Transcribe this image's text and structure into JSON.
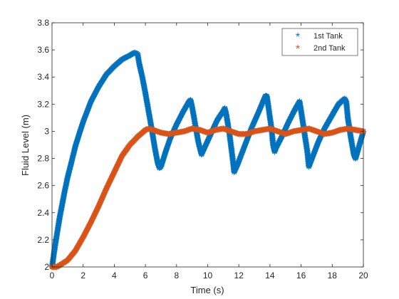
{
  "chart_data": {
    "type": "scatter",
    "xlabel": "Time (s)",
    "ylabel": "Fluid Level (m)",
    "xlim": [
      0,
      20
    ],
    "ylim": [
      2,
      3.8
    ],
    "xticks": [
      "0",
      "2",
      "4",
      "6",
      "8",
      "10",
      "12",
      "14",
      "16",
      "18",
      "20"
    ],
    "yticks": [
      "2",
      "2.2",
      "2.4",
      "2.6",
      "2.8",
      "3",
      "3.2",
      "3.4",
      "3.6",
      "3.8"
    ],
    "grid": false,
    "legend_position": "top-right",
    "marker": "*",
    "series": [
      {
        "name": "1st Tank",
        "color": "#0072BD",
        "points": [
          [
            0,
            2.0
          ],
          [
            0.1,
            2.08
          ],
          [
            0.2,
            2.16
          ],
          [
            0.3,
            2.23
          ],
          [
            0.4,
            2.3
          ],
          [
            0.5,
            2.37
          ],
          [
            0.6,
            2.43
          ],
          [
            0.8,
            2.55
          ],
          [
            1.0,
            2.66
          ],
          [
            1.2,
            2.75
          ],
          [
            1.5,
            2.89
          ],
          [
            1.8,
            3.0
          ],
          [
            2.0,
            3.07
          ],
          [
            2.5,
            3.22
          ],
          [
            3.0,
            3.33
          ],
          [
            3.5,
            3.42
          ],
          [
            4.0,
            3.48
          ],
          [
            4.5,
            3.53
          ],
          [
            5.0,
            3.56
          ],
          [
            5.3,
            3.58
          ],
          [
            5.5,
            3.57
          ],
          [
            5.6,
            3.5
          ],
          [
            5.8,
            3.4
          ],
          [
            6.0,
            3.28
          ],
          [
            6.2,
            3.15
          ],
          [
            6.4,
            3.02
          ],
          [
            6.6,
            2.88
          ],
          [
            6.8,
            2.76
          ],
          [
            6.9,
            2.73
          ],
          [
            7.0,
            2.74
          ],
          [
            7.3,
            2.85
          ],
          [
            7.6,
            2.95
          ],
          [
            8.0,
            3.05
          ],
          [
            8.4,
            3.14
          ],
          [
            8.8,
            3.22
          ],
          [
            8.9,
            3.23
          ],
          [
            9.0,
            3.18
          ],
          [
            9.2,
            3.05
          ],
          [
            9.4,
            2.92
          ],
          [
            9.6,
            2.83
          ],
          [
            9.8,
            2.88
          ],
          [
            10.2,
            2.98
          ],
          [
            10.6,
            3.08
          ],
          [
            11.0,
            3.15
          ],
          [
            11.1,
            3.17
          ],
          [
            11.2,
            3.12
          ],
          [
            11.4,
            2.98
          ],
          [
            11.6,
            2.8
          ],
          [
            11.7,
            2.7
          ],
          [
            11.9,
            2.75
          ],
          [
            12.3,
            2.87
          ],
          [
            12.8,
            3.02
          ],
          [
            13.3,
            3.15
          ],
          [
            13.7,
            3.26
          ],
          [
            13.8,
            3.26
          ],
          [
            13.9,
            3.18
          ],
          [
            14.1,
            3.02
          ],
          [
            14.2,
            2.9
          ],
          [
            14.3,
            2.85
          ],
          [
            14.4,
            2.88
          ],
          [
            14.8,
            2.97
          ],
          [
            15.2,
            3.07
          ],
          [
            15.6,
            3.16
          ],
          [
            15.9,
            3.22
          ],
          [
            16.0,
            3.15
          ],
          [
            16.2,
            3.0
          ],
          [
            16.4,
            2.85
          ],
          [
            16.5,
            2.74
          ],
          [
            16.7,
            2.8
          ],
          [
            17.1,
            2.92
          ],
          [
            17.5,
            3.02
          ],
          [
            18.0,
            3.12
          ],
          [
            18.4,
            3.2
          ],
          [
            18.8,
            3.24
          ],
          [
            18.9,
            3.22
          ],
          [
            19.0,
            3.1
          ],
          [
            19.2,
            2.95
          ],
          [
            19.4,
            2.82
          ],
          [
            19.5,
            2.8
          ],
          [
            19.7,
            2.88
          ],
          [
            20.0,
            3.0
          ]
        ]
      },
      {
        "name": "2nd Tank",
        "color": "#D95319",
        "points": [
          [
            0,
            2.0
          ],
          [
            0.3,
            2.0
          ],
          [
            0.6,
            2.02
          ],
          [
            1.0,
            2.05
          ],
          [
            1.5,
            2.12
          ],
          [
            2.0,
            2.22
          ],
          [
            2.5,
            2.33
          ],
          [
            3.0,
            2.45
          ],
          [
            3.5,
            2.58
          ],
          [
            4.0,
            2.7
          ],
          [
            4.5,
            2.82
          ],
          [
            5.0,
            2.9
          ],
          [
            5.5,
            2.96
          ],
          [
            6.0,
            3.01
          ],
          [
            6.2,
            3.02
          ],
          [
            6.5,
            3.01
          ],
          [
            7.0,
            2.99
          ],
          [
            7.5,
            2.98
          ],
          [
            8.0,
            2.99
          ],
          [
            8.5,
            3.0
          ],
          [
            9.0,
            3.02
          ],
          [
            9.5,
            3.01
          ],
          [
            10.0,
            2.99
          ],
          [
            10.5,
            3.01
          ],
          [
            11.0,
            3.02
          ],
          [
            11.5,
            3.0
          ],
          [
            12.0,
            2.98
          ],
          [
            12.5,
            2.98
          ],
          [
            13.0,
            3.0
          ],
          [
            13.5,
            3.01
          ],
          [
            14.0,
            3.02
          ],
          [
            14.5,
            3.0
          ],
          [
            15.0,
            2.98
          ],
          [
            15.5,
            3.0
          ],
          [
            16.0,
            3.01
          ],
          [
            16.5,
            3.02
          ],
          [
            17.0,
            3.0
          ],
          [
            17.5,
            2.98
          ],
          [
            18.0,
            2.99
          ],
          [
            18.5,
            3.01
          ],
          [
            19.0,
            3.02
          ],
          [
            19.5,
            3.01
          ],
          [
            20.0,
            3.0
          ]
        ]
      }
    ]
  }
}
